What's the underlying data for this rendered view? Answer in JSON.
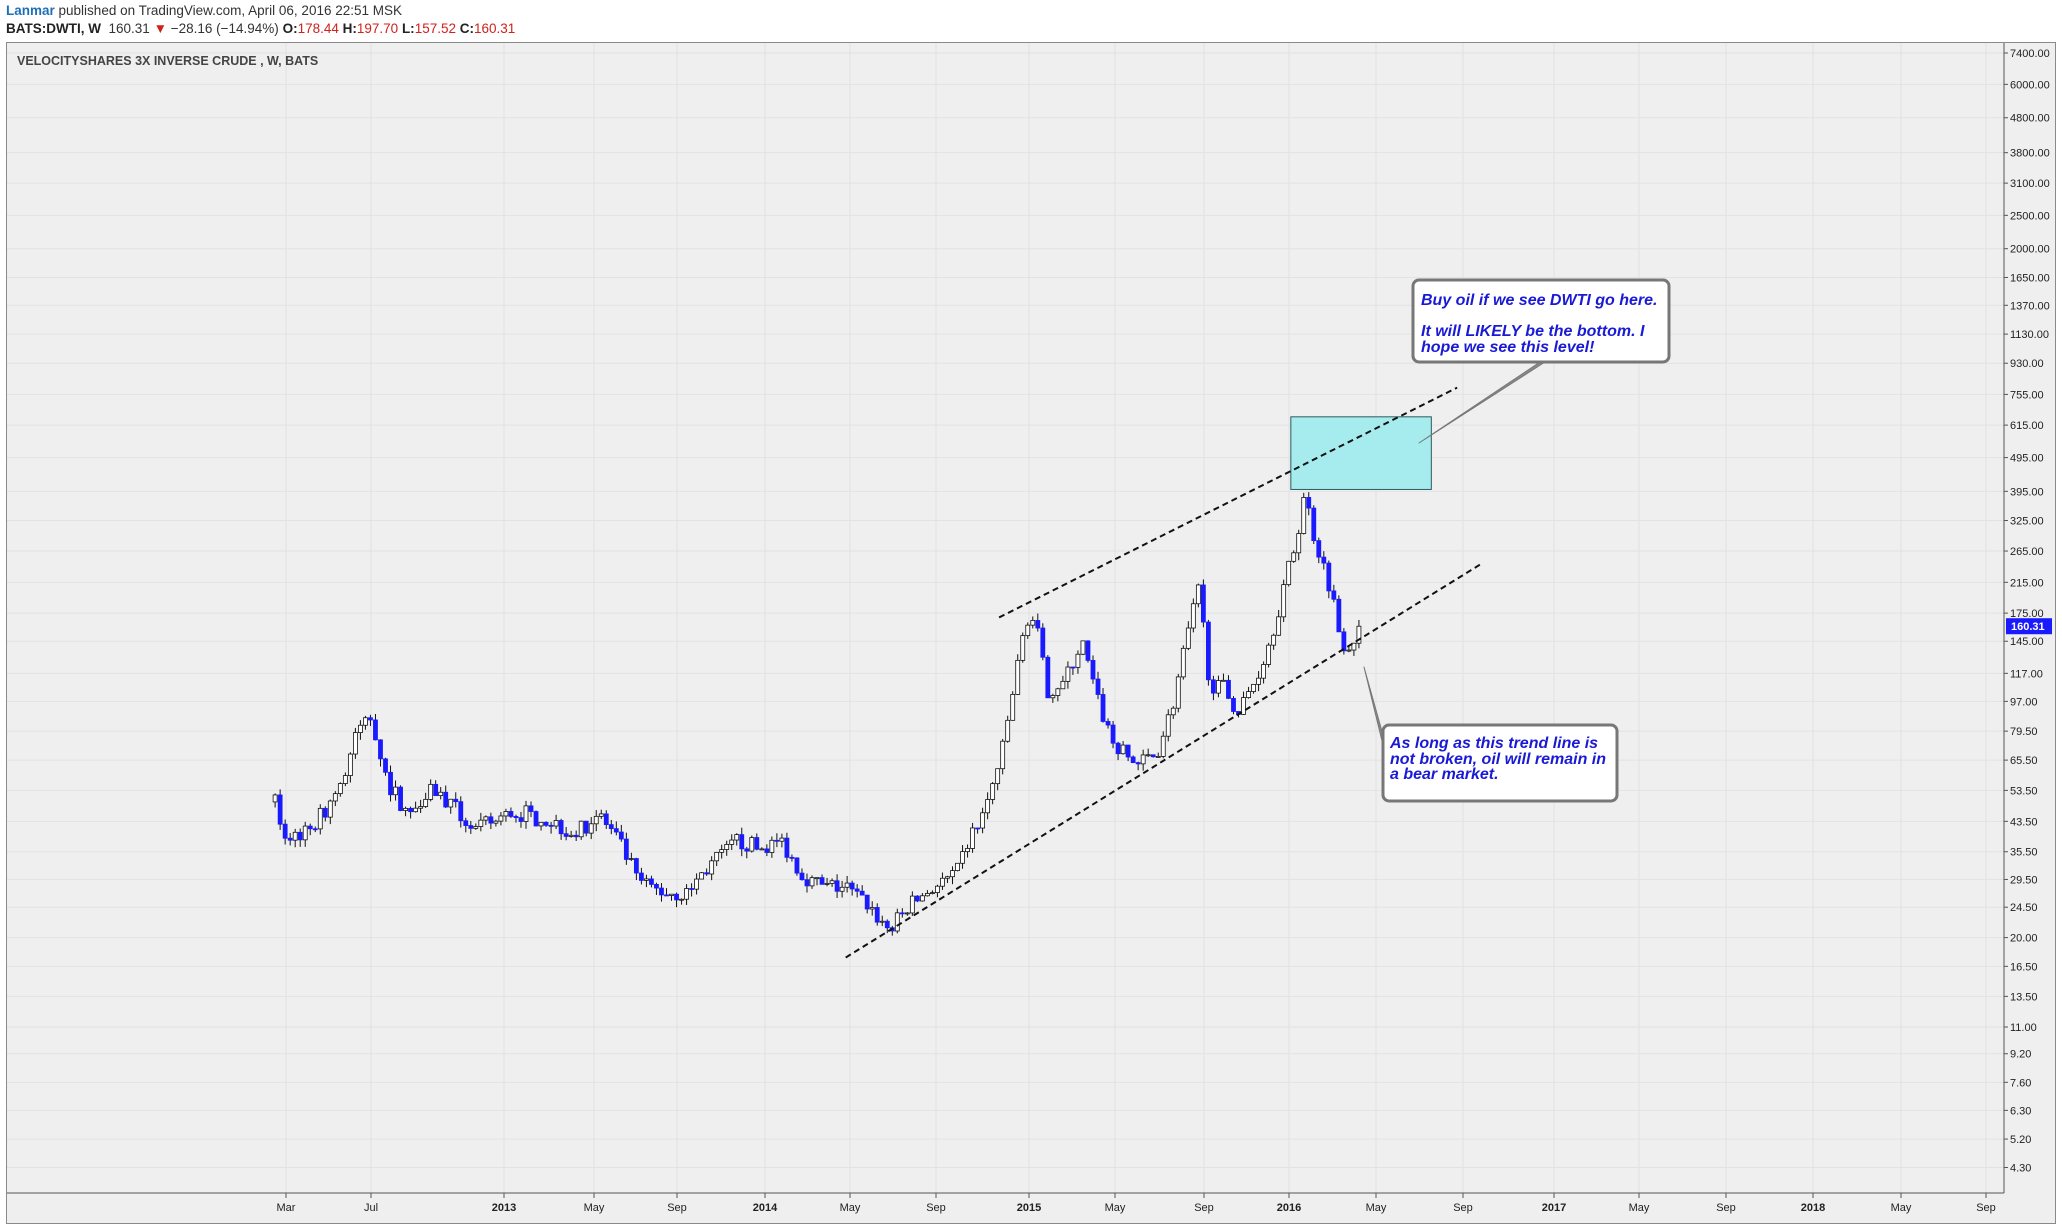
{
  "header": {
    "author": "Lanmar",
    "published_text": " published on TradingView.com, April 06, 2016 22:51 MSK",
    "symbol": "BATS:DWTI, W",
    "last": "160.31",
    "arrow": "▼",
    "change": "−28.16 (−14.94%)",
    "o_label": "O:",
    "o_value": "178.44",
    "h_label": "H:",
    "h_value": "197.70",
    "l_label": "L:",
    "l_value": "157.52",
    "c_label": "C:",
    "c_value": "160.31"
  },
  "colors": {
    "background": "#efefef",
    "grid": "#e2e2e2",
    "down_candle": "#1a1aff",
    "up_candle": "#ffffff",
    "candle_outline": "#111111",
    "target_box": "#a6ecee",
    "price_tag": "#1a1aff"
  },
  "chart_data": {
    "type": "candlestick",
    "title": "VELOCITYSHARES 3X INVERSE CRUDE , W, BATS",
    "scale": "log",
    "ylim": [
      3.8,
      7600
    ],
    "x_tick_labels": [
      "Mar",
      "Jul",
      "2013",
      "May",
      "Sep",
      "2014",
      "May",
      "Sep",
      "2015",
      "May",
      "Sep",
      "2016",
      "May",
      "Sep",
      "2017",
      "May",
      "Sep",
      "2018",
      "May",
      "Sep"
    ],
    "y_tick_labels": [
      "7400.00",
      "6000.00",
      "4800.00",
      "3800.00",
      "3100.00",
      "2500.00",
      "2000.00",
      "1650.00",
      "1370.00",
      "1130.00",
      "930.00",
      "755.00",
      "615.00",
      "495.00",
      "395.00",
      "325.00",
      "265.00",
      "215.00",
      "175.00",
      "145.00",
      "117.00",
      "97.00",
      "79.50",
      "65.50",
      "53.50",
      "43.50",
      "35.50",
      "29.50",
      "24.50",
      "20.00",
      "16.50",
      "13.50",
      "11.00",
      "9.20",
      "7.60",
      "6.30",
      "5.20",
      "4.30"
    ],
    "last_price_label": "160.31",
    "series_path": [
      [
        "2012-02-14",
        50
      ],
      [
        "2012-02-28",
        38
      ],
      [
        "2012-03-15",
        40
      ],
      [
        "2012-04-10",
        43
      ],
      [
        "2012-05-20",
        58
      ],
      [
        "2012-06-10",
        82
      ],
      [
        "2012-06-28",
        88
      ],
      [
        "2012-07-20",
        56
      ],
      [
        "2012-08-20",
        45
      ],
      [
        "2012-09-15",
        56
      ],
      [
        "2012-10-20",
        47
      ],
      [
        "2012-11-20",
        41
      ],
      [
        "2013-01-10",
        46
      ],
      [
        "2013-02-20",
        45
      ],
      [
        "2013-04-10",
        40
      ],
      [
        "2013-05-10",
        46
      ],
      [
        "2013-06-10",
        37
      ],
      [
        "2013-07-05",
        29
      ],
      [
        "2013-08-10",
        27
      ],
      [
        "2013-09-10",
        27
      ],
      [
        "2013-10-15",
        33
      ],
      [
        "2013-11-20",
        38
      ],
      [
        "2013-12-20",
        36
      ],
      [
        "2014-01-20",
        38
      ],
      [
        "2014-02-20",
        30
      ],
      [
        "2014-03-20",
        28
      ],
      [
        "2014-04-20",
        28
      ],
      [
        "2014-05-20",
        25
      ],
      [
        "2014-06-20",
        21
      ],
      [
        "2014-07-20",
        25
      ],
      [
        "2014-08-20",
        28
      ],
      [
        "2014-09-20",
        30
      ],
      [
        "2014-10-10",
        39
      ],
      [
        "2014-11-01",
        47
      ],
      [
        "2014-11-25",
        70
      ],
      [
        "2014-12-10",
        105
      ],
      [
        "2014-12-28",
        170
      ],
      [
        "2015-01-10",
        165
      ],
      [
        "2015-01-25",
        105
      ],
      [
        "2015-02-20",
        110
      ],
      [
        "2015-03-15",
        145
      ],
      [
        "2015-04-05",
        100
      ],
      [
        "2015-04-30",
        72
      ],
      [
        "2015-05-30",
        64
      ],
      [
        "2015-06-28",
        68
      ],
      [
        "2015-07-20",
        95
      ],
      [
        "2015-08-10",
        150
      ],
      [
        "2015-08-26",
        205
      ],
      [
        "2015-09-10",
        110
      ],
      [
        "2015-10-01",
        105
      ],
      [
        "2015-10-20",
        90
      ],
      [
        "2015-11-15",
        115
      ],
      [
        "2015-12-05",
        150
      ],
      [
        "2015-12-20",
        200
      ],
      [
        "2016-01-10",
        290
      ],
      [
        "2016-01-20",
        390
      ],
      [
        "2016-02-05",
        280
      ],
      [
        "2016-02-25",
        210
      ],
      [
        "2016-03-10",
        150
      ],
      [
        "2016-03-20",
        140
      ],
      [
        "2016-04-06",
        160.31
      ]
    ],
    "trendlines": [
      {
        "from": [
          "2014-04-20",
          17.5
        ],
        "to": [
          "2016-09-25",
          245
        ]
      },
      {
        "from": [
          "2014-11-20",
          170
        ],
        "to": [
          "2016-08-20",
          790
        ]
      }
    ],
    "target_zone": {
      "x": [
        "2016-01-01",
        "2016-07-15"
      ],
      "y": [
        400,
        650
      ]
    },
    "annotations": [
      {
        "line1": "Buy oil if we see DWTI go here.",
        "line2": "It will LIKELY be the bottom. I",
        "line3": "hope we see this level!"
      },
      {
        "line1": "As long as this trend line is",
        "line2": "not broken, oil will remain in",
        "line3": "a bear market."
      }
    ]
  }
}
